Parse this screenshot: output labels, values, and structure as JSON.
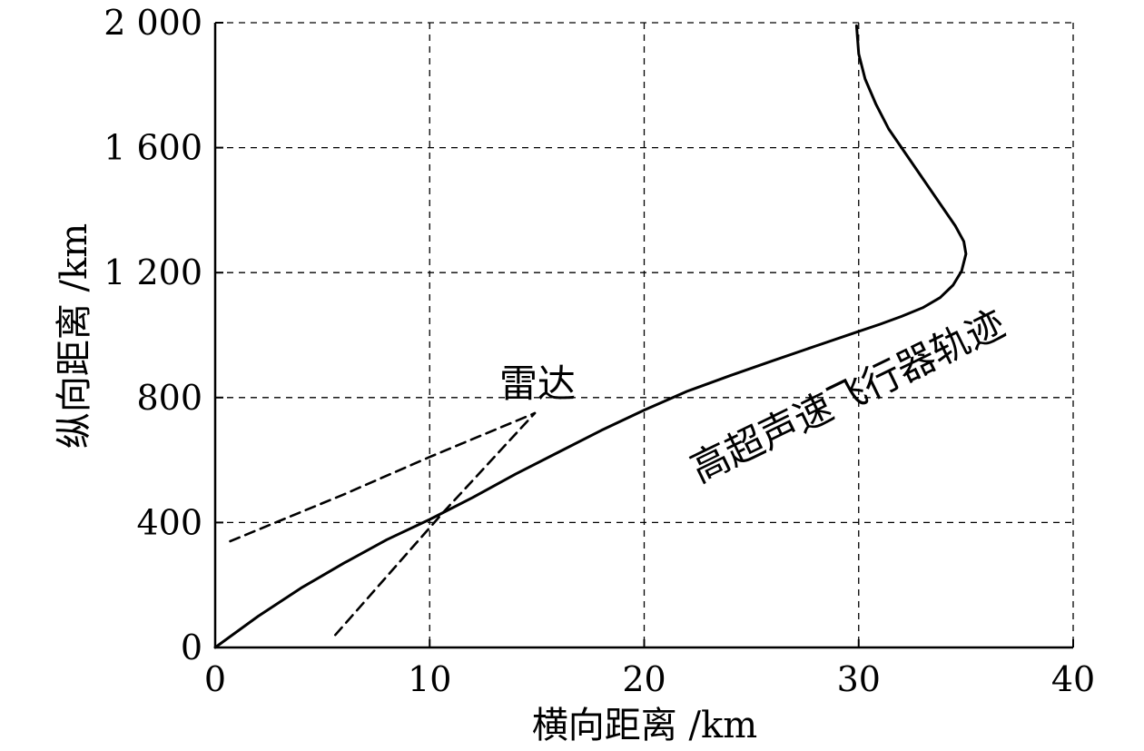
{
  "chart_data": {
    "type": "line",
    "xlabel": "横向距离 /km",
    "ylabel": "纵向距离 /km",
    "xlim": [
      0,
      40
    ],
    "ylim": [
      0,
      2000
    ],
    "xticks": [
      0,
      10,
      20,
      30,
      40
    ],
    "yticks": [
      0,
      400,
      800,
      1200,
      1600,
      2000
    ],
    "xtick_labels": [
      "0",
      "10",
      "20",
      "30",
      "40"
    ],
    "ytick_labels": [
      "0",
      "400",
      "800",
      "1 200",
      "1 600",
      "2 000"
    ],
    "grid": true,
    "series": [
      {
        "style": "solid",
        "x": [
          0,
          2,
          4,
          6,
          8,
          10,
          12,
          14,
          16,
          18,
          20,
          22,
          24,
          26,
          28,
          30,
          31,
          32,
          33,
          33.8,
          34.4,
          34.8,
          35.0,
          34.9,
          34.5,
          33.8,
          33.0,
          32.2,
          31.4,
          30.8,
          30.3,
          30.0,
          29.9
        ],
        "y": [
          0,
          100,
          190,
          270,
          345,
          410,
          480,
          555,
          625,
          695,
          760,
          820,
          870,
          918,
          965,
          1012,
          1035,
          1060,
          1088,
          1120,
          1160,
          1205,
          1260,
          1300,
          1350,
          1420,
          1500,
          1580,
          1660,
          1740,
          1820,
          1900,
          1990
        ]
      },
      {
        "style": "dashed",
        "x": [
          0.7,
          6,
          10,
          14.9
        ],
        "y": [
          340,
          490,
          610,
          750
        ]
      },
      {
        "style": "dashed",
        "x": [
          5.6,
          10.6,
          14.9
        ],
        "y": [
          40,
          430,
          750
        ]
      }
    ],
    "annotations": [
      {
        "text": "雷达"
      },
      {
        "text": "高超声速飞行器轨迹"
      }
    ]
  }
}
